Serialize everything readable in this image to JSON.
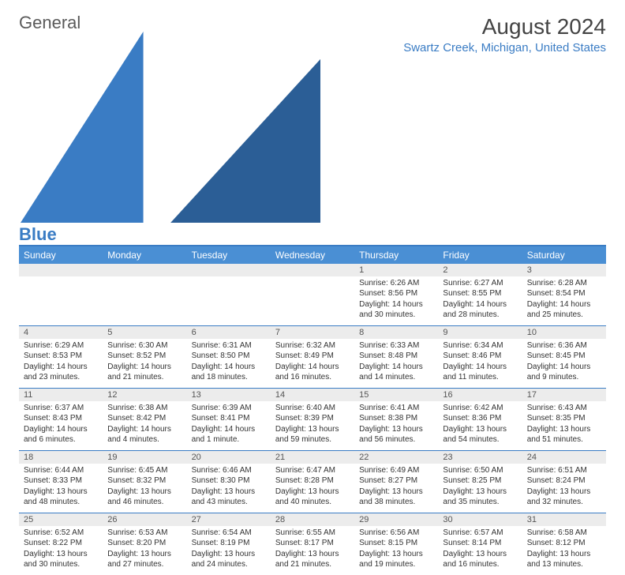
{
  "brand": {
    "name1": "General",
    "name2": "Blue",
    "logo_fill": "#3a7cc4"
  },
  "title": "August 2024",
  "location": "Swartz Creek, Michigan, United States",
  "colors": {
    "header_bg": "#4a8fd4",
    "accent": "#3a7cc4",
    "daynum_bg": "#ececec",
    "text": "#333333",
    "header_text": "#ffffff"
  },
  "typography": {
    "title_fontsize": 28,
    "location_fontsize": 15,
    "dayheader_fontsize": 12,
    "daynum_fontsize": 11,
    "body_fontsize": 10
  },
  "day_headers": [
    "Sunday",
    "Monday",
    "Tuesday",
    "Wednesday",
    "Thursday",
    "Friday",
    "Saturday"
  ],
  "labels": {
    "sunrise": "Sunrise:",
    "sunset": "Sunset:",
    "daylight": "Daylight:"
  },
  "weeks": [
    [
      {
        "day": "",
        "empty": true
      },
      {
        "day": "",
        "empty": true
      },
      {
        "day": "",
        "empty": true
      },
      {
        "day": "",
        "empty": true
      },
      {
        "day": "1",
        "sunrise": "6:26 AM",
        "sunset": "8:56 PM",
        "daylight": "14 hours and 30 minutes."
      },
      {
        "day": "2",
        "sunrise": "6:27 AM",
        "sunset": "8:55 PM",
        "daylight": "14 hours and 28 minutes."
      },
      {
        "day": "3",
        "sunrise": "6:28 AM",
        "sunset": "8:54 PM",
        "daylight": "14 hours and 25 minutes."
      }
    ],
    [
      {
        "day": "4",
        "sunrise": "6:29 AM",
        "sunset": "8:53 PM",
        "daylight": "14 hours and 23 minutes."
      },
      {
        "day": "5",
        "sunrise": "6:30 AM",
        "sunset": "8:52 PM",
        "daylight": "14 hours and 21 minutes."
      },
      {
        "day": "6",
        "sunrise": "6:31 AM",
        "sunset": "8:50 PM",
        "daylight": "14 hours and 18 minutes."
      },
      {
        "day": "7",
        "sunrise": "6:32 AM",
        "sunset": "8:49 PM",
        "daylight": "14 hours and 16 minutes."
      },
      {
        "day": "8",
        "sunrise": "6:33 AM",
        "sunset": "8:48 PM",
        "daylight": "14 hours and 14 minutes."
      },
      {
        "day": "9",
        "sunrise": "6:34 AM",
        "sunset": "8:46 PM",
        "daylight": "14 hours and 11 minutes."
      },
      {
        "day": "10",
        "sunrise": "6:36 AM",
        "sunset": "8:45 PM",
        "daylight": "14 hours and 9 minutes."
      }
    ],
    [
      {
        "day": "11",
        "sunrise": "6:37 AM",
        "sunset": "8:43 PM",
        "daylight": "14 hours and 6 minutes."
      },
      {
        "day": "12",
        "sunrise": "6:38 AM",
        "sunset": "8:42 PM",
        "daylight": "14 hours and 4 minutes."
      },
      {
        "day": "13",
        "sunrise": "6:39 AM",
        "sunset": "8:41 PM",
        "daylight": "14 hours and 1 minute."
      },
      {
        "day": "14",
        "sunrise": "6:40 AM",
        "sunset": "8:39 PM",
        "daylight": "13 hours and 59 minutes."
      },
      {
        "day": "15",
        "sunrise": "6:41 AM",
        "sunset": "8:38 PM",
        "daylight": "13 hours and 56 minutes."
      },
      {
        "day": "16",
        "sunrise": "6:42 AM",
        "sunset": "8:36 PM",
        "daylight": "13 hours and 54 minutes."
      },
      {
        "day": "17",
        "sunrise": "6:43 AM",
        "sunset": "8:35 PM",
        "daylight": "13 hours and 51 minutes."
      }
    ],
    [
      {
        "day": "18",
        "sunrise": "6:44 AM",
        "sunset": "8:33 PM",
        "daylight": "13 hours and 48 minutes."
      },
      {
        "day": "19",
        "sunrise": "6:45 AM",
        "sunset": "8:32 PM",
        "daylight": "13 hours and 46 minutes."
      },
      {
        "day": "20",
        "sunrise": "6:46 AM",
        "sunset": "8:30 PM",
        "daylight": "13 hours and 43 minutes."
      },
      {
        "day": "21",
        "sunrise": "6:47 AM",
        "sunset": "8:28 PM",
        "daylight": "13 hours and 40 minutes."
      },
      {
        "day": "22",
        "sunrise": "6:49 AM",
        "sunset": "8:27 PM",
        "daylight": "13 hours and 38 minutes."
      },
      {
        "day": "23",
        "sunrise": "6:50 AM",
        "sunset": "8:25 PM",
        "daylight": "13 hours and 35 minutes."
      },
      {
        "day": "24",
        "sunrise": "6:51 AM",
        "sunset": "8:24 PM",
        "daylight": "13 hours and 32 minutes."
      }
    ],
    [
      {
        "day": "25",
        "sunrise": "6:52 AM",
        "sunset": "8:22 PM",
        "daylight": "13 hours and 30 minutes."
      },
      {
        "day": "26",
        "sunrise": "6:53 AM",
        "sunset": "8:20 PM",
        "daylight": "13 hours and 27 minutes."
      },
      {
        "day": "27",
        "sunrise": "6:54 AM",
        "sunset": "8:19 PM",
        "daylight": "13 hours and 24 minutes."
      },
      {
        "day": "28",
        "sunrise": "6:55 AM",
        "sunset": "8:17 PM",
        "daylight": "13 hours and 21 minutes."
      },
      {
        "day": "29",
        "sunrise": "6:56 AM",
        "sunset": "8:15 PM",
        "daylight": "13 hours and 19 minutes."
      },
      {
        "day": "30",
        "sunrise": "6:57 AM",
        "sunset": "8:14 PM",
        "daylight": "13 hours and 16 minutes."
      },
      {
        "day": "31",
        "sunrise": "6:58 AM",
        "sunset": "8:12 PM",
        "daylight": "13 hours and 13 minutes."
      }
    ]
  ]
}
